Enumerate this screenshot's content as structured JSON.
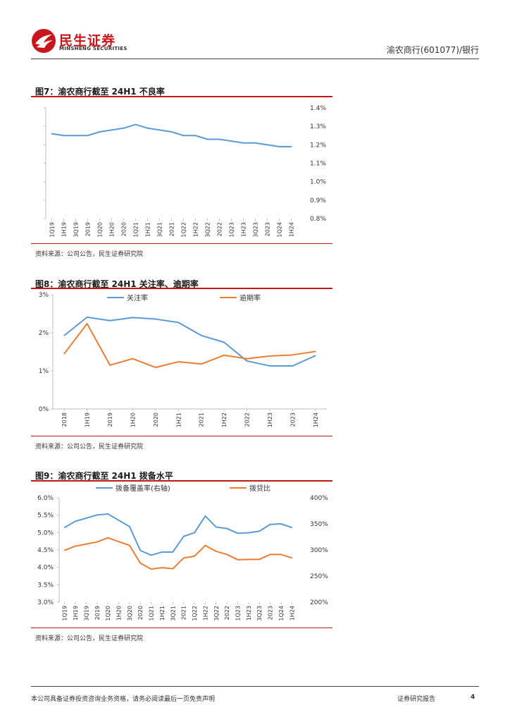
{
  "header": {
    "logo_cn": "民生证券",
    "logo_en": "MINSHENG SECURITIES",
    "report_title": "渝农商行(601077)/银行"
  },
  "colors": {
    "brand": "#c8161d",
    "blue": "#5b9bd5",
    "orange": "#ed7d31",
    "axis": "#bfbfbf"
  },
  "figures": [
    {
      "title": "图7：渝农商行截至 24H1 不良率",
      "source": "资料来源：公司公告，民生证券研究院"
    },
    {
      "title": "图8：渝农商行截至 24H1 关注率、逾期率",
      "source": "资料来源：公司公告，民生证券研究院"
    },
    {
      "title": "图9：渝农商行截至 24H1 拨备水平",
      "source": "资料来源：公司公告，民生证券研究院"
    }
  ],
  "chart_data": [
    {
      "type": "line",
      "title": "",
      "categories": [
        "1Q19",
        "1H19",
        "3Q19",
        "2019",
        "1Q20",
        "1H20",
        "2020",
        "1Q21",
        "1H21",
        "3Q21",
        "2021",
        "1Q22",
        "1H22",
        "3Q22",
        "2022",
        "1Q23",
        "1H23",
        "3Q23",
        "2023",
        "1Q24",
        "1H24"
      ],
      "series": [
        {
          "values": [
            1.26,
            1.25,
            1.25,
            1.25,
            1.27,
            1.28,
            1.29,
            1.31,
            1.29,
            1.28,
            1.27,
            1.25,
            1.25,
            1.23,
            1.23,
            1.22,
            1.21,
            1.21,
            1.2,
            1.19,
            1.19
          ]
        }
      ],
      "y_ticks": [
        "0.8%",
        "0.9%",
        "1.0%",
        "1.1%",
        "1.2%",
        "1.3%",
        "1.4%"
      ],
      "ylim": [
        0.8,
        1.4
      ],
      "y_axis_side": "right",
      "grid": false
    },
    {
      "type": "line",
      "title": "",
      "categories": [
        "2018",
        "1H19",
        "2019",
        "1H20",
        "2020",
        "1H21",
        "2021",
        "1H22",
        "2022",
        "1H23",
        "2023",
        "1H24"
      ],
      "series": [
        {
          "name": "关注率",
          "values": [
            1.93,
            2.41,
            2.32,
            2.4,
            2.36,
            2.27,
            1.93,
            1.75,
            1.26,
            1.13,
            1.13,
            1.4
          ]
        },
        {
          "name": "逾期率",
          "values": [
            1.45,
            2.24,
            1.15,
            1.32,
            1.09,
            1.24,
            1.18,
            1.41,
            1.32,
            1.39,
            1.42,
            1.51
          ]
        }
      ],
      "y_ticks": [
        "0%",
        "1%",
        "2%",
        "3%"
      ],
      "ylim": [
        0,
        3
      ],
      "legend": "top",
      "grid": false
    },
    {
      "type": "line",
      "title": "",
      "categories": [
        "1Q19",
        "1H19",
        "3Q19",
        "2019",
        "1Q20",
        "1H20",
        "3Q20",
        "2020",
        "1Q21",
        "1H21",
        "3Q21",
        "2021",
        "1Q22",
        "1H22",
        "3Q22",
        "2022",
        "1Q23",
        "1H23",
        "3Q23",
        "2023",
        "1Q24",
        "1H24"
      ],
      "series": [
        {
          "name": "拨备覆盖率(右轴)",
          "axis": "right",
          "values": [
            343,
            355,
            361,
            367,
            369,
            357,
            345,
            299,
            290,
            296,
            296,
            326,
            333,
            365,
            344,
            341,
            332,
            333,
            336,
            349,
            350,
            343
          ]
        },
        {
          "name": "拨贷比",
          "axis": "left",
          "values": [
            4.49,
            4.61,
            4.67,
            4.73,
            4.85,
            4.74,
            4.63,
            4.12,
            3.95,
            3.99,
            3.96,
            4.27,
            4.32,
            4.63,
            4.46,
            4.37,
            4.22,
            4.23,
            4.23,
            4.37,
            4.37,
            4.27
          ]
        }
      ],
      "y_ticks_left": [
        "3.0%",
        "3.5%",
        "4.0%",
        "4.5%",
        "5.0%",
        "5.5%",
        "6.0%"
      ],
      "y_ticks_right": [
        "200%",
        "250%",
        "300%",
        "350%",
        "400%"
      ],
      "ylim_left": [
        3.0,
        6.0
      ],
      "ylim_right": [
        200,
        400
      ],
      "legend": "top",
      "grid": false
    }
  ],
  "footer": {
    "disclaimer": "本公司具备证券投资咨询业务资格，请务必阅读最后一页免责声明",
    "report_type": "证券研究报告",
    "page": "4"
  }
}
